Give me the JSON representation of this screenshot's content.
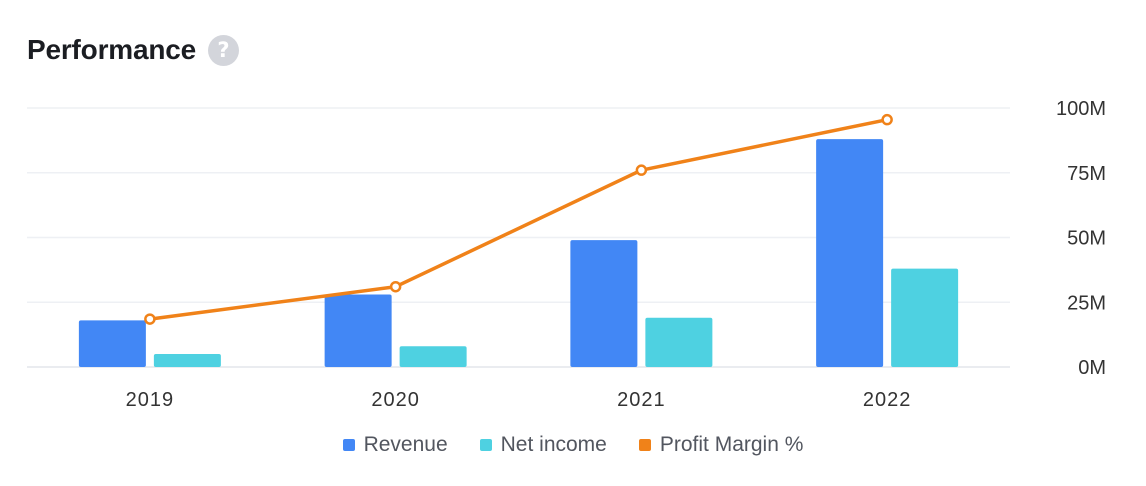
{
  "header": {
    "title": "Performance",
    "help_icon": "question-circle-icon",
    "help_glyph": "?"
  },
  "colors": {
    "revenue": "#4287f5",
    "net_income": "#4ed1e1",
    "margin": "#f08219",
    "grid": "#eef0f4",
    "axis_text": "#333333"
  },
  "chart_data": {
    "type": "bar",
    "title": "Performance",
    "categories": [
      "2019",
      "2020",
      "2021",
      "2022"
    ],
    "series": [
      {
        "name": "Revenue",
        "kind": "bar",
        "values": [
          18,
          28,
          49,
          88
        ]
      },
      {
        "name": "Net income",
        "kind": "bar",
        "values": [
          5,
          8,
          19,
          38
        ]
      },
      {
        "name": "Profit Margin %",
        "kind": "line",
        "values": [
          18.5,
          31,
          76,
          95.5
        ]
      }
    ],
    "y_ticks": [
      "0M",
      "25M",
      "50M",
      "75M",
      "100M"
    ],
    "y_tick_values": [
      0,
      25,
      50,
      75,
      100
    ],
    "ylim": [
      0,
      100
    ],
    "y_axis_side": "right",
    "grid": true,
    "legend_position": "bottom-center"
  },
  "legend": [
    {
      "label": "Revenue",
      "color_key": "revenue"
    },
    {
      "label": "Net income",
      "color_key": "net_income"
    },
    {
      "label": "Profit Margin %",
      "color_key": "margin"
    }
  ]
}
